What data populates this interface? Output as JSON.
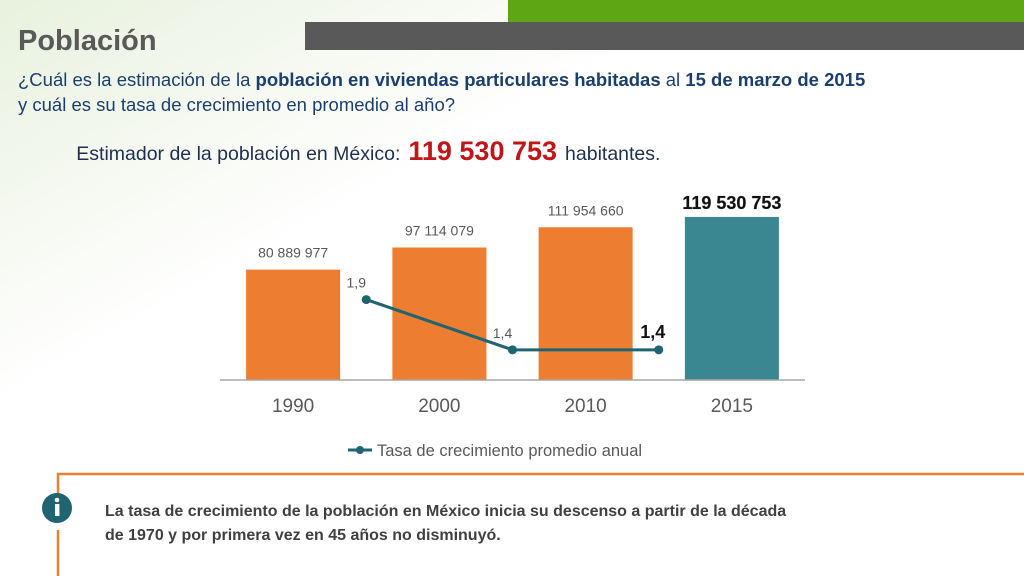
{
  "header": {
    "title": "Población"
  },
  "question": {
    "lines": [
      [
        {
          "text": "¿Cuál es la estimación de la ",
          "bold": false
        },
        {
          "text": "población en viviendas particulares habitadas",
          "bold": true
        },
        {
          "text": " al ",
          "bold": false
        },
        {
          "text": "15 de marzo de 2015",
          "bold": true
        }
      ],
      [
        {
          "text": "y cuál es su tasa de crecimiento en promedio al año?",
          "bold": false
        }
      ]
    ]
  },
  "estimate": {
    "prefix": "Estimador de la población en México:",
    "value": "119 530 753",
    "suffix": "habitantes."
  },
  "chart_data": {
    "type": "bar",
    "categories": [
      "1990",
      "2000",
      "2010",
      "2015"
    ],
    "ylim": [
      0,
      140000000
    ],
    "y2lim": [
      1.1,
      3.0
    ],
    "series": [
      {
        "type": "bar",
        "colors": [
          "#ed7d31",
          "#ed7d31",
          "#ed7d31",
          "#3a8691"
        ],
        "values": [
          80889977,
          97114079,
          111954660,
          119530753
        ],
        "value_labels": [
          "80 889 977",
          "97 114 079",
          "111 954 660",
          "119 530 753"
        ]
      },
      {
        "type": "line",
        "axis": "y2",
        "name": "Tasa de crecimiento promedio anual",
        "color": "#1f6470",
        "values": [
          null,
          1.9,
          1.4,
          1.4
        ],
        "value_labels": [
          null,
          "1,9",
          "1,4",
          "1,4"
        ]
      }
    ]
  },
  "info": {
    "lines": [
      "La tasa de crecimiento de la población en México inicia su descenso a partir de la década",
      "de 1970 y por primera vez en 45 años no disminuyó."
    ]
  }
}
